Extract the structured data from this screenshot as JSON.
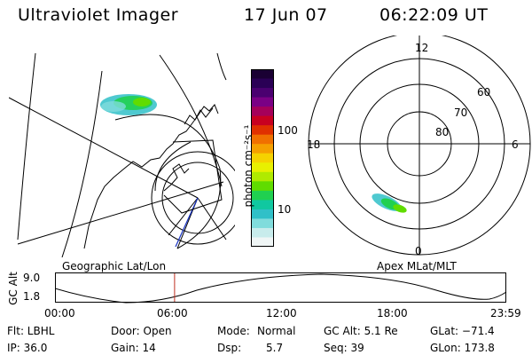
{
  "header": {
    "title": "Ultraviolet Imager",
    "date": "17 Jun 07",
    "time": "06:22:09 UT"
  },
  "colorbar": {
    "label": "photon cm⁻²s⁻¹",
    "ticks": [
      "100",
      "10"
    ],
    "colors": [
      "#1a0033",
      "#2a0055",
      "#4a0070",
      "#7a0085",
      "#a5005a",
      "#c80020",
      "#e03000",
      "#f07000",
      "#f5a000",
      "#f5d200",
      "#e8f000",
      "#b0ea00",
      "#60dc00",
      "#20d050",
      "#10c8a0",
      "#30c0c8",
      "#80dcdc",
      "#c8ecec",
      "#f0f6f6"
    ]
  },
  "polar_plot": {
    "hour_labels": [
      "12",
      "6",
      "18",
      "0"
    ],
    "lat_labels": [
      "60",
      "70",
      "80"
    ]
  },
  "map_label": "Geographic Lat/Lon",
  "polar_label": "Apex MLat/MLT",
  "orbit": {
    "axis_label": "GC Alt",
    "y_ticks": [
      "9.0",
      "1.8"
    ],
    "x_ticks": [
      "00:00",
      "06:00",
      "12:00",
      "18:00",
      "23:59"
    ],
    "current_time_fraction": 0.265
  },
  "info": {
    "filter": "Flt: LBHL",
    "door": "Door: Open",
    "mode_label": "Mode:",
    "mode_value": "Normal",
    "gc_alt": "GC Alt: 5.1 Re",
    "glat": "GLat: −71.4",
    "ip": "IP: 36.0",
    "gain": "Gain: 14",
    "dsp_label": "Dsp:",
    "dsp_value": "5.7",
    "seq": "Seq: 39",
    "glon": "GLon: 173.8"
  }
}
